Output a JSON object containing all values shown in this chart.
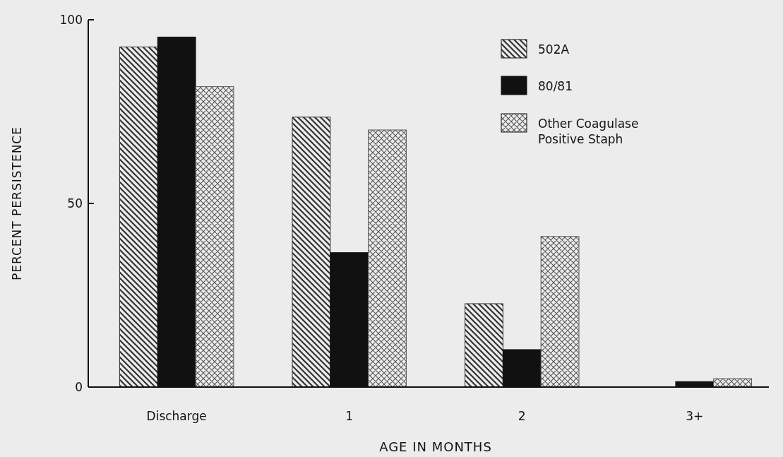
{
  "chart_data": {
    "type": "bar",
    "xlabel": "AGE IN MONTHS",
    "ylabel": "PERCENT PERSISTENCE",
    "categories": [
      "Discharge",
      "1",
      "2",
      "3+"
    ],
    "series": [
      {
        "name": "502A",
        "color": "#333333",
        "values": [
          92.6,
          73.5,
          22.7,
          0
        ]
      },
      {
        "name": "80/81",
        "color": "#111111",
        "values": [
          95.3,
          36.6,
          10.2,
          1.5
        ]
      },
      {
        "name": "Other Coagulase Positive Staph",
        "color": "#555555",
        "values": [
          81.8,
          70,
          41,
          2.3
        ]
      }
    ],
    "ylim": [
      0,
      100
    ],
    "yticks": [
      0,
      50,
      100
    ],
    "legend": "top right",
    "grid": false
  }
}
